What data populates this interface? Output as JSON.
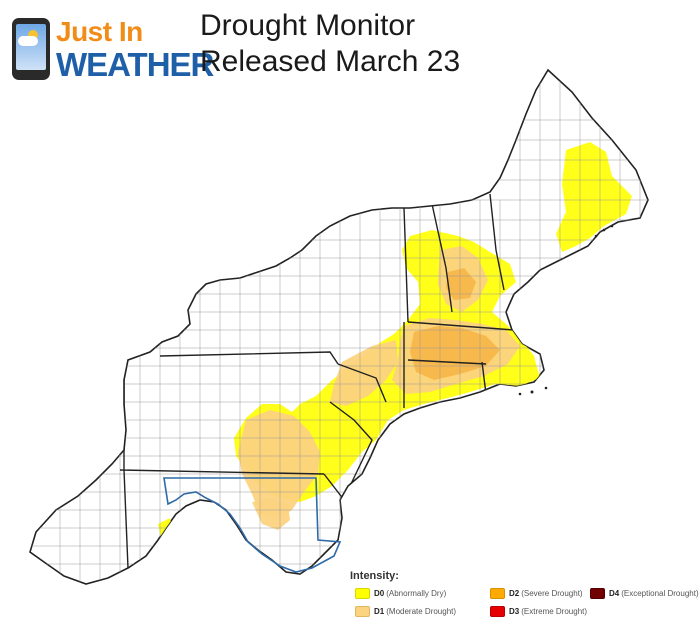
{
  "logo": {
    "line1": "Just In",
    "line2": "WEATHER"
  },
  "title": {
    "line1": "Drought Monitor",
    "line2": "Released March 23"
  },
  "legend": {
    "heading": "Intensity:",
    "items": [
      {
        "code": "D0",
        "desc": "(Abnormally Dry)",
        "color": "#ffff00"
      },
      {
        "code": "D1",
        "desc": "(Moderate Drought)",
        "color": "#fcd37f"
      },
      {
        "code": "D2",
        "desc": "(Severe Drought)",
        "color": "#ffaa00"
      },
      {
        "code": "D3",
        "desc": "(Extreme Drought)",
        "color": "#e60000"
      },
      {
        "code": "D4",
        "desc": "(Exceptional Drought)",
        "color": "#730000"
      }
    ]
  },
  "colors": {
    "state_border": "#222222",
    "county_line": "#9a9a9a",
    "maryland_outline": "#2f6aa8"
  }
}
